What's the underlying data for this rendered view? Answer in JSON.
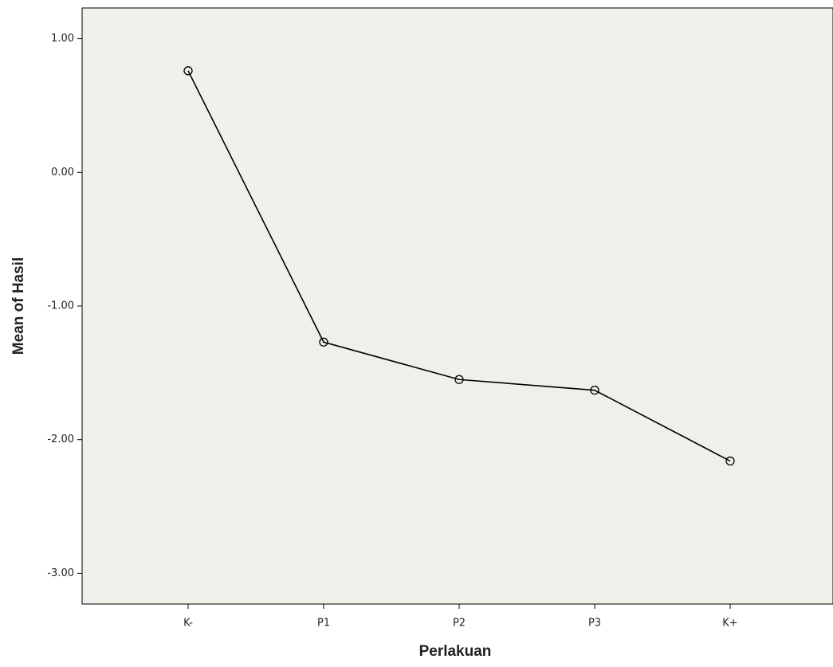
{
  "chart_data": {
    "type": "line",
    "x_label": "Perlakuan",
    "y_label": "Mean of Hasil",
    "categories": [
      "K-",
      "P1",
      "P2",
      "P3",
      "K+"
    ],
    "values": [
      0.76,
      -1.27,
      -1.55,
      -1.63,
      -2.16
    ],
    "color": "#000000",
    "ylim": [
      -3.23,
      1.23
    ],
    "yticks": [
      {
        "value": 1,
        "label": "1.00"
      },
      {
        "value": 0,
        "label": "0.00"
      },
      {
        "value": -1,
        "label": "-1.00"
      },
      {
        "value": -2,
        "label": "-2.00"
      },
      {
        "value": -3,
        "label": "-3.00"
      }
    ],
    "grid": false
  }
}
